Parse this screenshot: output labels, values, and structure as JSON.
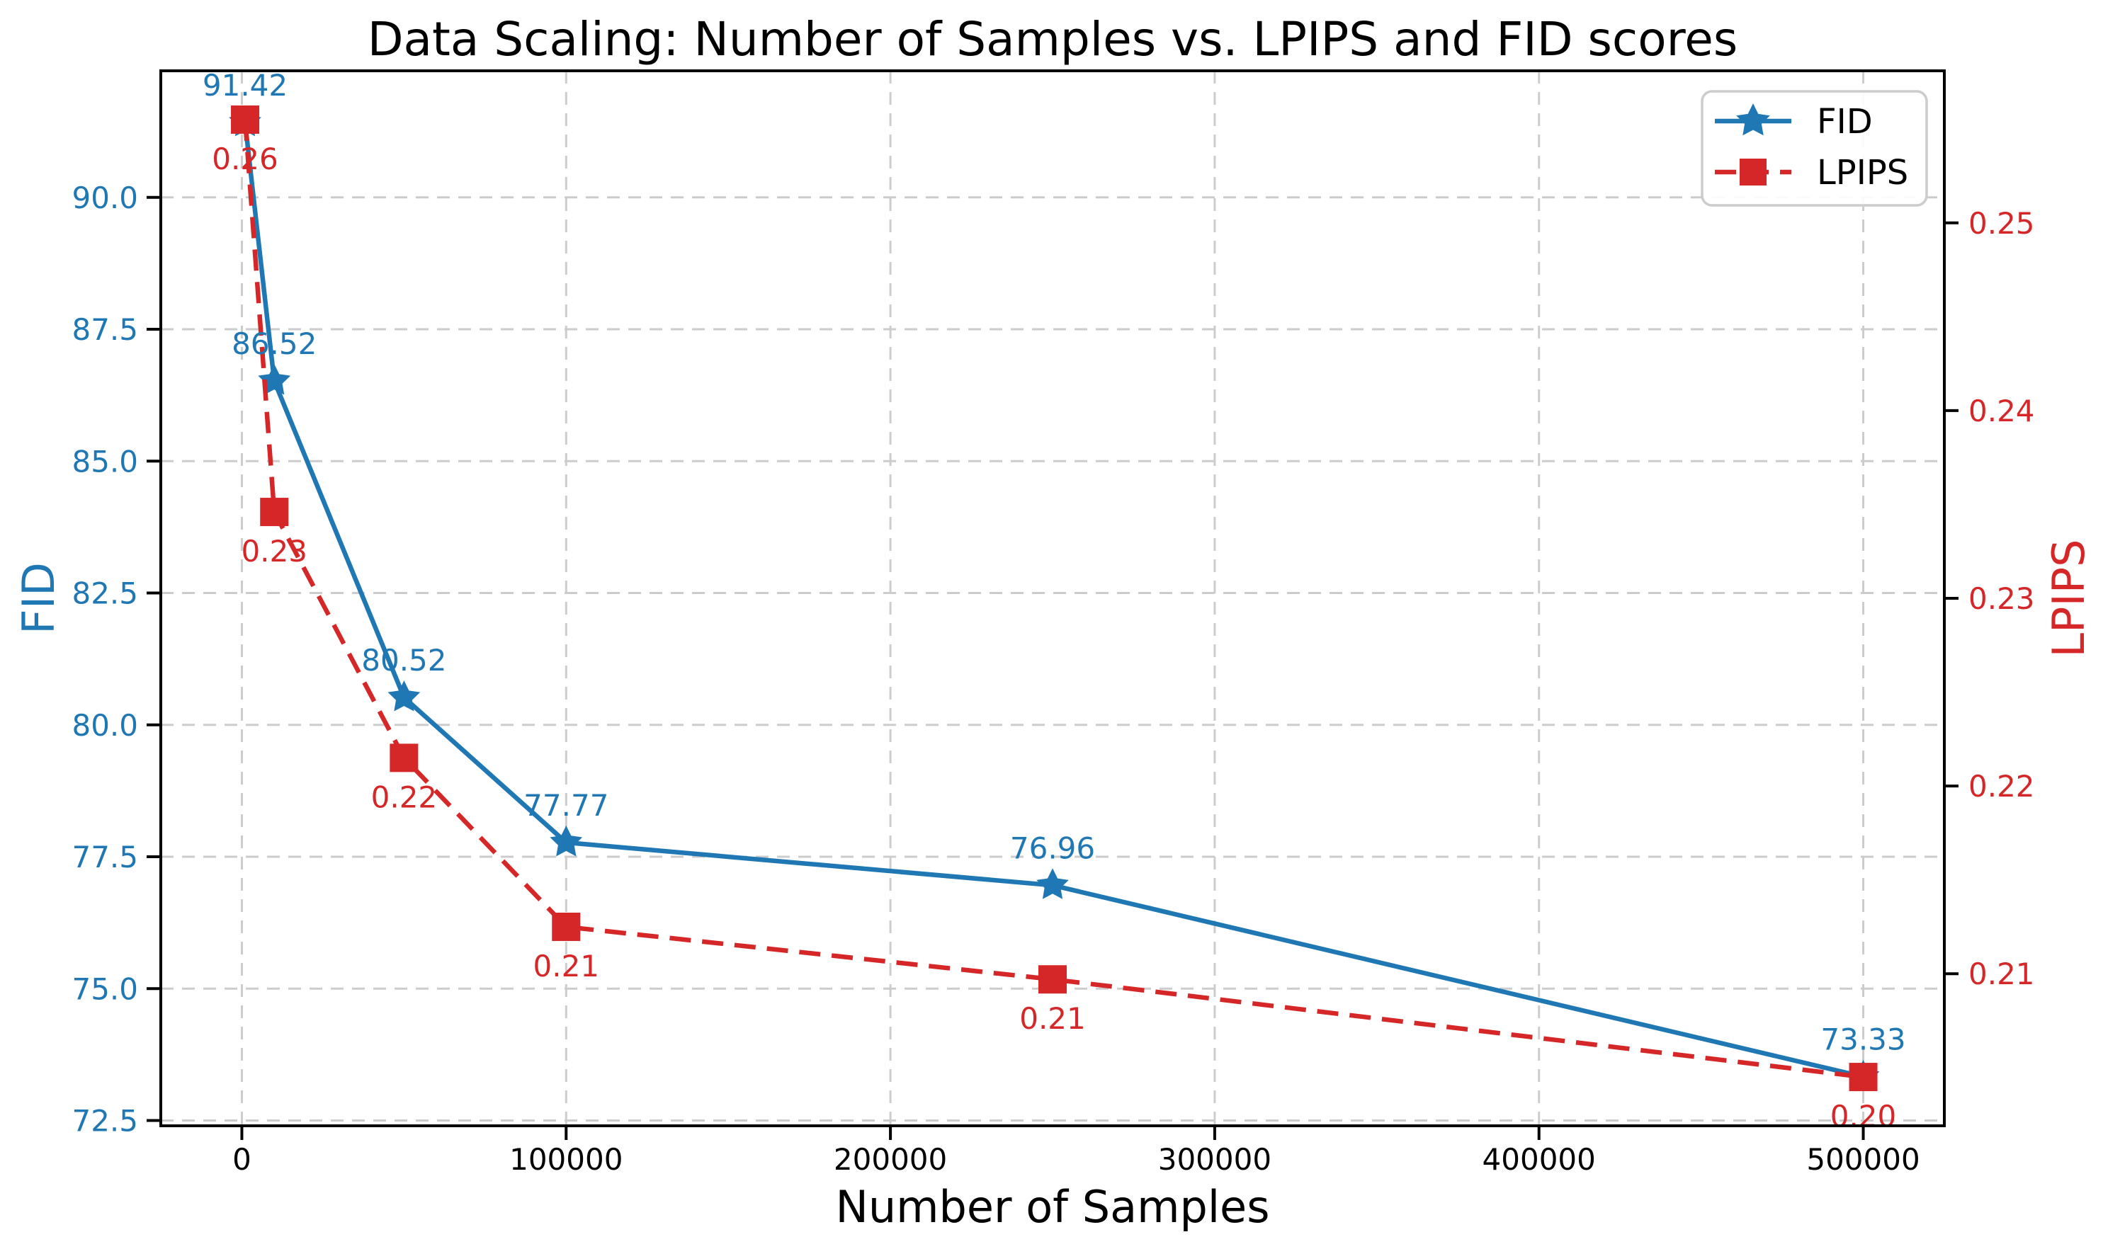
{
  "page": {
    "background": "#ffffff"
  },
  "chart_data": {
    "type": "line",
    "title": "Data Scaling: Number of Samples vs. LPIPS and FID scores",
    "xlabel": "Number of Samples",
    "grid": true,
    "x": [
      1000,
      10000,
      50000,
      100000,
      250000,
      500000
    ],
    "xlim": [
      -25000,
      525000
    ],
    "x_ticks": {
      "values": [
        0,
        100000,
        200000,
        300000,
        400000,
        500000
      ],
      "labels": [
        "0",
        "100000",
        "200000",
        "300000",
        "400000",
        "500000"
      ]
    },
    "axes": {
      "left": {
        "label": "FID",
        "color": "#1f77b4",
        "lim": [
          72.4,
          92.4
        ],
        "ticks": {
          "values": [
            72.5,
            75.0,
            77.5,
            80.0,
            82.5,
            85.0,
            87.5,
            90.0
          ],
          "labels": [
            "72.5",
            "75.0",
            "77.5",
            "80.0",
            "82.5",
            "85.0",
            "87.5",
            "90.0"
          ]
        }
      },
      "right": {
        "label": "LPIPS",
        "color": "#d62728",
        "lim": [
          0.2019,
          0.2581
        ],
        "ticks": {
          "values": [
            0.21,
            0.22,
            0.23,
            0.24,
            0.25
          ],
          "labels": [
            "0.21",
            "0.22",
            "0.23",
            "0.24",
            "0.25"
          ]
        }
      }
    },
    "series": [
      {
        "name": "FID",
        "axis": "left",
        "color": "#1f77b4",
        "linestyle": "solid",
        "marker": "star",
        "values": [
          91.42,
          86.52,
          80.52,
          77.77,
          76.96,
          73.33
        ],
        "point_labels": [
          "91.42",
          "86.52",
          "80.52",
          "77.77",
          "76.96",
          "73.33"
        ],
        "label_side": "above"
      },
      {
        "name": "LPIPS",
        "axis": "right",
        "color": "#d62728",
        "linestyle": "dashed",
        "marker": "square",
        "values": [
          0.2555,
          0.2346,
          0.2215,
          0.2125,
          0.2097,
          0.2045
        ],
        "point_labels": [
          "0.26",
          "0.23",
          "0.22",
          "0.21",
          "0.21",
          "0.20"
        ],
        "label_side": "below"
      }
    ],
    "legend": {
      "position": "upper right",
      "entries": [
        "FID",
        "LPIPS"
      ]
    },
    "style_colors": {
      "grid": "#cccccc",
      "spine": "#000000",
      "x_tick_label": "#000000",
      "legend_border": "#cccccc",
      "legend_text": "#000000"
    }
  }
}
